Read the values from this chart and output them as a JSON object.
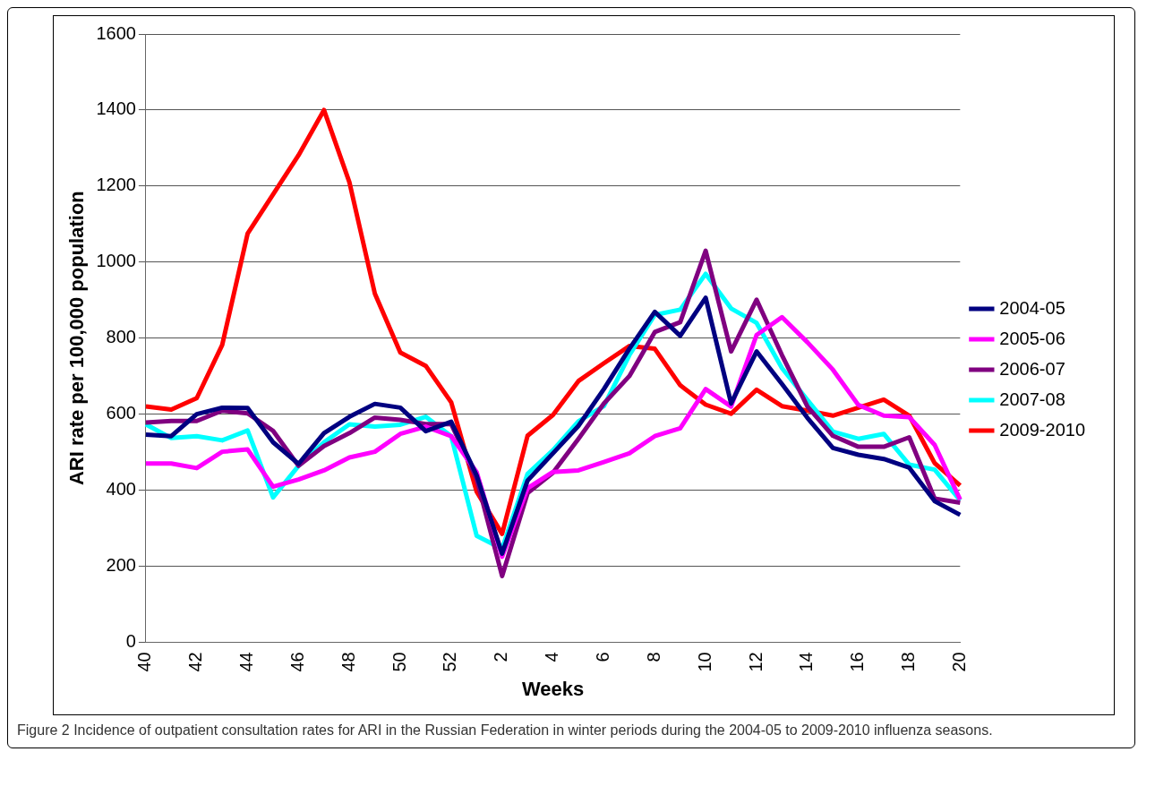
{
  "chart_data": {
    "type": "line",
    "xlabel": "Weeks",
    "ylabel": "ARI rate per 100,000 population",
    "categories": [
      "40",
      null,
      "42",
      null,
      "44",
      null,
      "46",
      null,
      "48",
      null,
      "50",
      null,
      "52",
      null,
      "2",
      null,
      "4",
      null,
      "6",
      null,
      "8",
      null,
      "10",
      null,
      "12",
      null,
      "14",
      null,
      "16",
      null,
      "18",
      null,
      "20"
    ],
    "series": [
      {
        "name": "2004-05",
        "color": "#000080",
        "values": [
          546,
          542,
          600,
          617,
          616,
          526,
          469,
          550,
          593,
          627,
          617,
          555,
          580,
          439,
          233,
          425,
          497,
          569,
          666,
          772,
          869,
          806,
          906,
          628,
          765,
          679,
          590,
          511,
          493,
          482,
          459,
          371,
          335
        ]
      },
      {
        "name": "2005-06",
        "color": "#ff00ff",
        "values": [
          470,
          470,
          458,
          501,
          507,
          409,
          428,
          452,
          486,
          501,
          548,
          567,
          542,
          447,
          225,
          405,
          448,
          452,
          474,
          497,
          542,
          563,
          666,
          620,
          808,
          855,
          789,
          717,
          624,
          596,
          592,
          519,
          375
        ]
      },
      {
        "name": "2006-07",
        "color": "#800080",
        "values": [
          578,
          582,
          582,
          609,
          602,
          556,
          464,
          516,
          550,
          591,
          585,
          574,
          574,
          430,
          174,
          392,
          446,
          535,
          628,
          700,
          816,
          842,
          1030,
          765,
          901,
          755,
          620,
          543,
          514,
          514,
          539,
          378,
          367
        ]
      },
      {
        "name": "2007-08",
        "color": "#00ffff",
        "values": [
          573,
          537,
          542,
          531,
          557,
          381,
          464,
          526,
          573,
          567,
          572,
          593,
          542,
          280,
          246,
          443,
          505,
          581,
          621,
          755,
          861,
          875,
          969,
          878,
          840,
          721,
          637,
          554,
          535,
          548,
          467,
          454,
          373
        ]
      },
      {
        "name": "2009-2010",
        "color": "#ff0000",
        "values": [
          620,
          612,
          642,
          782,
          1075,
          1178,
          1281,
          1400,
          1210,
          917,
          762,
          727,
          631,
          396,
          285,
          543,
          598,
          687,
          734,
          779,
          772,
          676,
          625,
          601,
          664,
          621,
          609,
          596,
          617,
          638,
          596,
          471,
          412
        ]
      }
    ],
    "ylim": [
      0,
      1600
    ],
    "yticks": [
      0,
      200,
      400,
      600,
      800,
      1000,
      1200,
      1400,
      1600
    ],
    "grid": "y",
    "legend": "right",
    "marker": "none",
    "line_style": "solid",
    "annotations": [
      "Figure 2 Incidence of outpatient consultation rates for ARI in the Russian Federation in winter periods during the 2004-05 to 2009-2010 influenza seasons."
    ]
  }
}
